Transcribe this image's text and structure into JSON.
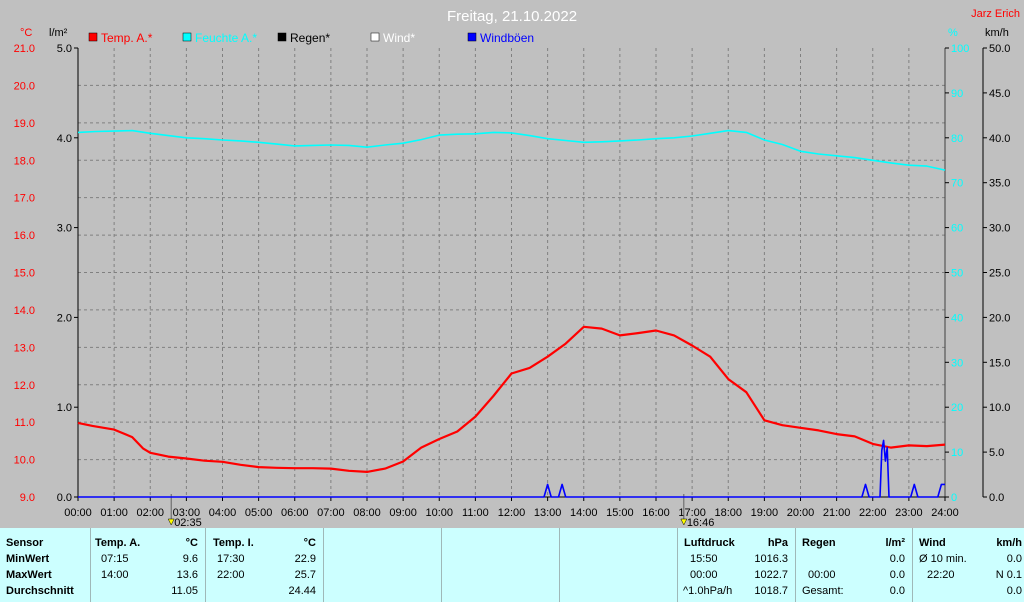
{
  "chart_data": {
    "type": "line",
    "title": "Freitag, 21.10.2022",
    "credit": "Jarz Erich",
    "units": {
      "temp": "°C",
      "rain": "l/m²",
      "humidity": "%",
      "wind": "km/h"
    },
    "legend": [
      "Temp. A.*",
      "Feuchte A.*",
      "Regen*",
      "Wind*",
      "Windböen"
    ],
    "legend_colors": [
      "#ff0000",
      "#00ffff",
      "#000000",
      "#ffffff",
      "#0000ff"
    ],
    "x_ticks": [
      "00:00",
      "01:00",
      "02:00",
      "03:00",
      "04:00",
      "05:00",
      "06:00",
      "07:00",
      "08:00",
      "09:00",
      "10:00",
      "11:00",
      "12:00",
      "13:00",
      "14:00",
      "15:00",
      "16:00",
      "17:00",
      "18:00",
      "19:00",
      "20:00",
      "21:00",
      "22:00",
      "23:00",
      "24:00"
    ],
    "markers": [
      {
        "time": "02:35",
        "x": 2.58
      },
      {
        "time": "16:46",
        "x": 16.77
      }
    ],
    "temp_ticks": [
      "21.0",
      "20.0",
      "19.0",
      "18.0",
      "17.0",
      "16.0",
      "15.0",
      "14.0",
      "13.0",
      "12.0",
      "11.0",
      "10.0",
      "9.0"
    ],
    "temp_range": [
      9.0,
      21.0
    ],
    "rain_ticks": [
      "5.0",
      "4.0",
      "3.0",
      "2.0",
      "1.0",
      "0.0"
    ],
    "rain_range": [
      0,
      5
    ],
    "humidity_ticks": [
      "100",
      "90",
      "80",
      "70",
      "60",
      "50",
      "40",
      "30",
      "20",
      "10",
      "0"
    ],
    "humidity_range": [
      0,
      100
    ],
    "wind_ticks": [
      "50.0",
      "45.0",
      "40.0",
      "35.0",
      "30.0",
      "25.0",
      "20.0",
      "15.0",
      "10.0",
      "5.0",
      "0.0"
    ],
    "wind_range": [
      0,
      50
    ],
    "series": [
      {
        "name": "Temp. A.*",
        "color": "#ff0000",
        "x": [
          0,
          0.4,
          1,
          1.5,
          1.8,
          2,
          2.5,
          3,
          3.5,
          4,
          4.5,
          5,
          5.5,
          6,
          6.5,
          7,
          7.5,
          8,
          8.5,
          9,
          9.5,
          10,
          10.5,
          11,
          11.5,
          12,
          12.5,
          13,
          13.5,
          14,
          14.5,
          15,
          15.5,
          16,
          16.5,
          17,
          17.5,
          18,
          18.5,
          19,
          19.5,
          20,
          20.5,
          21,
          21.5,
          22,
          22.5,
          23,
          23.5,
          24
        ],
        "y": [
          10.98,
          10.9,
          10.8,
          10.6,
          10.3,
          10.18,
          10.08,
          10.03,
          9.97,
          9.94,
          9.86,
          9.8,
          9.78,
          9.77,
          9.77,
          9.76,
          9.7,
          9.67,
          9.76,
          9.95,
          10.32,
          10.55,
          10.75,
          11.15,
          11.7,
          12.3,
          12.45,
          12.75,
          13.1,
          13.55,
          13.5,
          13.32,
          13.38,
          13.45,
          13.32,
          13.05,
          12.75,
          12.15,
          11.8,
          11.05,
          10.92,
          10.85,
          10.78,
          10.68,
          10.62,
          10.42,
          10.32,
          10.38,
          10.36,
          10.4
        ]
      },
      {
        "name": "Feuchte A.*",
        "color": "#00ffff",
        "x": [
          0,
          0.5,
          1,
          1.5,
          2,
          2.5,
          3,
          3.5,
          4,
          4.5,
          5,
          5.5,
          6,
          6.5,
          7,
          7.5,
          8,
          8.5,
          9,
          9.5,
          10,
          10.5,
          11,
          11.5,
          12,
          12.5,
          13,
          13.5,
          14,
          14.5,
          15,
          15.5,
          16,
          16.5,
          17,
          17.5,
          18,
          18.5,
          19,
          19.5,
          20,
          20.5,
          21,
          21.5,
          22,
          22.5,
          23,
          23.5,
          24
        ],
        "y": [
          81.2,
          81.4,
          81.5,
          81.6,
          81.0,
          80.5,
          80.0,
          79.8,
          79.5,
          79.3,
          79.0,
          78.6,
          78.2,
          78.3,
          78.4,
          78.3,
          77.9,
          78.4,
          78.8,
          79.6,
          80.6,
          80.8,
          80.9,
          81.2,
          81.1,
          80.5,
          79.8,
          79.4,
          79.0,
          79.1,
          79.3,
          79.5,
          79.8,
          80.0,
          80.4,
          81.0,
          81.6,
          81.2,
          79.5,
          78.5,
          77.0,
          76.4,
          76.0,
          75.6,
          75.0,
          74.4,
          73.9,
          73.7,
          72.8
        ]
      },
      {
        "name": "Windböen",
        "color": "#0000ff",
        "x": [
          0,
          12.9,
          13.0,
          13.1,
          13.3,
          13.4,
          13.5,
          21.7,
          21.8,
          21.9,
          22.2,
          22.25,
          22.3,
          22.35,
          22.4,
          22.45,
          23.05,
          23.15,
          23.25,
          23.8,
          23.9,
          24
        ],
        "y": [
          0,
          0,
          1.4,
          0,
          0,
          1.4,
          0,
          0,
          1.4,
          0,
          0,
          5.2,
          6.3,
          4.0,
          5.5,
          0,
          0,
          1.4,
          0,
          0,
          1.4,
          1.4
        ]
      }
    ]
  },
  "stats": {
    "sensor": {
      "header": "Sensor",
      "rows": [
        "MinWert",
        "MaxWert",
        "Durchschnitt"
      ]
    },
    "temp_a": {
      "header": "Temp. A.",
      "unit": "°C",
      "min_time": "07:15",
      "min": "9.6",
      "max_time": "14:00",
      "max": "13.6",
      "avg": "11.05"
    },
    "temp_i": {
      "header": "Temp. I.",
      "unit": "°C",
      "min_time": "17:30",
      "min": "22.9",
      "max_time": "22:00",
      "max": "25.7",
      "avg": "24.44"
    },
    "pressure": {
      "header": "Luftdruck",
      "unit": "hPa",
      "min_time": "15:50",
      "min": "1016.3",
      "max_time": "00:00",
      "max": "1022.7",
      "trend": "^1.0hPa/h",
      "current": "1018.7"
    },
    "rain": {
      "header": "Regen",
      "unit": "l/m²",
      "r1": "0.0",
      "time": "00:00",
      "r2": "0.0",
      "total_label": "Gesamt:",
      "total": "0.0"
    },
    "wind": {
      "header": "Wind",
      "unit": "km/h",
      "avg_label": "Ø 10 min.",
      "avg": "0.0",
      "max_time": "22:20",
      "max": "N 0.1",
      "r3": "0.0"
    }
  }
}
